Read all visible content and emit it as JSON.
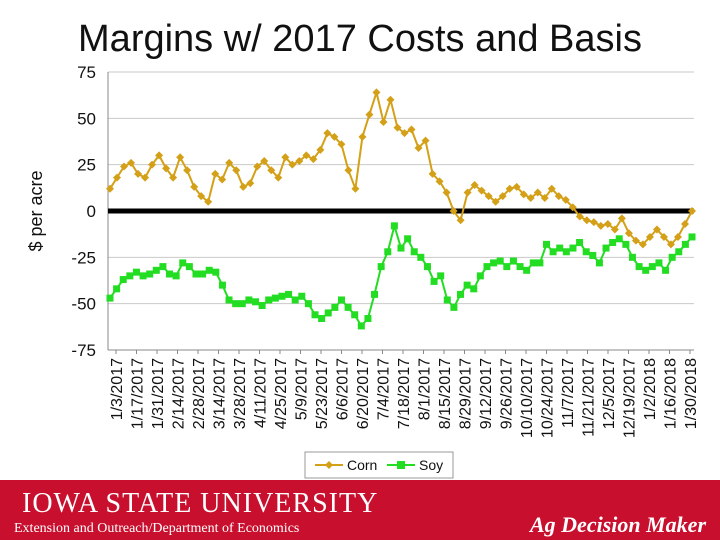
{
  "chart_data": {
    "type": "line",
    "title": "Margins w/ 2017 Costs and Basis",
    "ylabel": "$ per acre",
    "xlabel": "",
    "ylim": [
      -75,
      75
    ],
    "yticks": [
      "75",
      "50",
      "25",
      "0",
      "-25",
      "-50",
      "-75"
    ],
    "grid": "horizontal",
    "legend_position": "bottom",
    "x_tick_labels": [
      "1/3/2017",
      "1/17/2017",
      "1/31/2017",
      "2/14/2017",
      "2/28/2017",
      "3/14/2017",
      "3/28/2017",
      "4/11/2017",
      "4/25/2017",
      "5/9/2017",
      "5/23/2017",
      "6/6/2017",
      "6/20/2017",
      "7/4/2017",
      "7/18/2017",
      "8/1/2017",
      "8/15/2017",
      "8/29/2017",
      "9/12/2017",
      "9/26/2017",
      "10/10/2017",
      "10/24/2017",
      "11/7/2017",
      "11/21/2017",
      "12/5/2017",
      "12/19/2017",
      "1/2/2018",
      "1/16/2018",
      "1/30/2018"
    ],
    "series": [
      {
        "name": "Corn",
        "color": "#d4a017",
        "marker": "diamond",
        "values": [
          12,
          18,
          24,
          26,
          20,
          18,
          25,
          30,
          23,
          18,
          29,
          22,
          13,
          8,
          5,
          20,
          17,
          26,
          22,
          13,
          15,
          24,
          27,
          22,
          18,
          29,
          25,
          27,
          30,
          28,
          33,
          42,
          40,
          36,
          22,
          12,
          40,
          52,
          64,
          48,
          60,
          45,
          42,
          44,
          34,
          38,
          20,
          16,
          10,
          0,
          -5,
          10,
          14,
          11,
          8,
          5,
          8,
          12,
          13,
          9,
          7,
          10,
          7,
          12,
          8,
          6,
          2,
          -3,
          -5,
          -6,
          -8,
          -7,
          -10,
          -4,
          -12,
          -16,
          -18,
          -14,
          -10,
          -14,
          -18,
          -14,
          -7,
          0
        ]
      },
      {
        "name": "Soy",
        "color": "#22dd22",
        "marker": "square",
        "values": [
          -47,
          -42,
          -37,
          -35,
          -33,
          -35,
          -34,
          -32,
          -30,
          -34,
          -35,
          -28,
          -30,
          -34,
          -34,
          -32,
          -33,
          -40,
          -48,
          -50,
          -50,
          -48,
          -49,
          -51,
          -48,
          -47,
          -46,
          -45,
          -48,
          -46,
          -50,
          -56,
          -58,
          -55,
          -52,
          -48,
          -52,
          -56,
          -62,
          -58,
          -45,
          -30,
          -22,
          -8,
          -20,
          -15,
          -22,
          -25,
          -30,
          -38,
          -35,
          -48,
          -52,
          -45,
          -40,
          -42,
          -35,
          -30,
          -28,
          -27,
          -30,
          -27,
          -30,
          -32,
          -28,
          -28,
          -18,
          -22,
          -20,
          -22,
          -20,
          -17,
          -22,
          -24,
          -28,
          -20,
          -17,
          -15,
          -18,
          -25,
          -30,
          -32,
          -30,
          -28,
          -32,
          -25,
          -22,
          -18,
          -14
        ]
      }
    ]
  },
  "footer": {
    "university": "IOWA STATE UNIVERSITY",
    "department": "Extension and Outreach/Department of Economics",
    "program": "Ag Decision Maker",
    "color": "#c8102e"
  }
}
